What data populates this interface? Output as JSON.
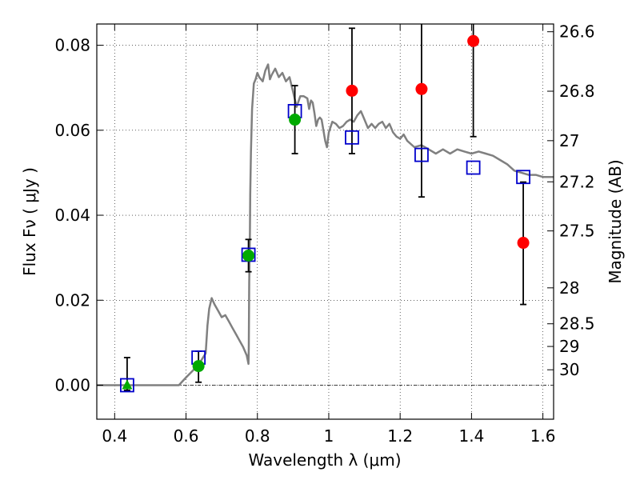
{
  "chart_data": {
    "type": "scatter",
    "xlabel": "Wavelength  λ (μm)",
    "ylabel_left": "Flux  Fν  ( μJy )",
    "ylabel_right": "Magnitude (AB)",
    "xlim": [
      0.35,
      1.63
    ],
    "ylim": [
      -0.008,
      0.085
    ],
    "grid": true,
    "x_ticks": [
      0.4,
      0.6,
      0.8,
      1.0,
      1.2,
      1.4,
      1.6
    ],
    "x_tick_labels": [
      "0.4",
      "0.6",
      "0.8",
      "1",
      "1.2",
      "1.4",
      "1.6"
    ],
    "y_ticks": [
      0.0,
      0.02,
      0.04,
      0.06,
      0.08
    ],
    "y_tick_labels": [
      "0.00",
      "0.02",
      "0.04",
      "0.06",
      "0.08"
    ],
    "mag_ticks": [
      "26.6",
      "26.8",
      "27",
      "27.2",
      "27.5",
      "28",
      "28.5",
      "29",
      "30"
    ],
    "colors": {
      "observed": "#ff0000",
      "model_photometry": "#0000cc",
      "upper_detection": "#00aa00",
      "sed_curve": "#808080",
      "error_bar": "#000000"
    },
    "sed_curve": [
      [
        0.35,
        0.0
      ],
      [
        0.58,
        0.0
      ],
      [
        0.6,
        0.0018
      ],
      [
        0.62,
        0.0035
      ],
      [
        0.64,
        0.0055
      ],
      [
        0.655,
        0.0075
      ],
      [
        0.66,
        0.014
      ],
      [
        0.665,
        0.018
      ],
      [
        0.672,
        0.0205
      ],
      [
        0.68,
        0.019
      ],
      [
        0.69,
        0.0175
      ],
      [
        0.7,
        0.016
      ],
      [
        0.71,
        0.0165
      ],
      [
        0.72,
        0.015
      ],
      [
        0.73,
        0.0135
      ],
      [
        0.74,
        0.012
      ],
      [
        0.75,
        0.0105
      ],
      [
        0.76,
        0.009
      ],
      [
        0.77,
        0.007
      ],
      [
        0.775,
        0.005
      ],
      [
        0.776,
        0.009
      ],
      [
        0.777,
        0.024
      ],
      [
        0.779,
        0.036
      ],
      [
        0.78,
        0.045
      ],
      [
        0.782,
        0.055
      ],
      [
        0.785,
        0.065
      ],
      [
        0.79,
        0.071
      ],
      [
        0.795,
        0.072
      ],
      [
        0.8,
        0.0735
      ],
      [
        0.805,
        0.0725
      ],
      [
        0.815,
        0.0715
      ],
      [
        0.822,
        0.074
      ],
      [
        0.83,
        0.0755
      ],
      [
        0.835,
        0.072
      ],
      [
        0.84,
        0.073
      ],
      [
        0.85,
        0.0745
      ],
      [
        0.86,
        0.0725
      ],
      [
        0.87,
        0.0735
      ],
      [
        0.88,
        0.0715
      ],
      [
        0.89,
        0.0725
      ],
      [
        0.9,
        0.069
      ],
      [
        0.91,
        0.0655
      ],
      [
        0.92,
        0.068
      ],
      [
        0.93,
        0.068
      ],
      [
        0.94,
        0.0675
      ],
      [
        0.945,
        0.065
      ],
      [
        0.95,
        0.067
      ],
      [
        0.955,
        0.0665
      ],
      [
        0.96,
        0.064
      ],
      [
        0.965,
        0.061
      ],
      [
        0.97,
        0.0625
      ],
      [
        0.975,
        0.063
      ],
      [
        0.98,
        0.0625
      ],
      [
        0.99,
        0.0575
      ],
      [
        0.995,
        0.056
      ],
      [
        1.0,
        0.0595
      ],
      [
        1.01,
        0.062
      ],
      [
        1.02,
        0.0615
      ],
      [
        1.03,
        0.0605
      ],
      [
        1.04,
        0.061
      ],
      [
        1.05,
        0.062
      ],
      [
        1.06,
        0.0625
      ],
      [
        1.07,
        0.062
      ],
      [
        1.08,
        0.0635
      ],
      [
        1.09,
        0.0645
      ],
      [
        1.1,
        0.0625
      ],
      [
        1.11,
        0.0605
      ],
      [
        1.12,
        0.0615
      ],
      [
        1.13,
        0.0605
      ],
      [
        1.14,
        0.0615
      ],
      [
        1.15,
        0.062
      ],
      [
        1.16,
        0.0605
      ],
      [
        1.17,
        0.0615
      ],
      [
        1.18,
        0.0595
      ],
      [
        1.19,
        0.0585
      ],
      [
        1.2,
        0.058
      ],
      [
        1.21,
        0.059
      ],
      [
        1.22,
        0.0575
      ],
      [
        1.24,
        0.056
      ],
      [
        1.26,
        0.0565
      ],
      [
        1.28,
        0.0555
      ],
      [
        1.3,
        0.0545
      ],
      [
        1.32,
        0.0555
      ],
      [
        1.34,
        0.0545
      ],
      [
        1.36,
        0.0555
      ],
      [
        1.38,
        0.055
      ],
      [
        1.4,
        0.0545
      ],
      [
        1.42,
        0.055
      ],
      [
        1.44,
        0.0545
      ],
      [
        1.46,
        0.054
      ],
      [
        1.48,
        0.053
      ],
      [
        1.5,
        0.052
      ],
      [
        1.52,
        0.0505
      ],
      [
        1.54,
        0.05
      ],
      [
        1.56,
        0.0495
      ],
      [
        1.58,
        0.0495
      ],
      [
        1.6,
        0.049
      ],
      [
        1.63,
        0.049
      ]
    ],
    "observed": [
      {
        "x": 1.065,
        "y": 0.0693,
        "lo": 0.0545,
        "hi": 0.084
      },
      {
        "x": 1.26,
        "y": 0.0697,
        "lo": 0.0443,
        "hi": 0.0855
      },
      {
        "x": 1.405,
        "y": 0.081,
        "lo": 0.0585,
        "hi": 0.0855
      },
      {
        "x": 1.545,
        "y": 0.0335,
        "lo": 0.019,
        "hi": 0.0478
      }
    ],
    "upper_detection": [
      {
        "x": 0.635,
        "y": 0.0045,
        "lo": 0.0007,
        "hi": 0.008,
        "marker": "circle"
      },
      {
        "x": 0.775,
        "y": 0.0305,
        "lo": 0.0267,
        "hi": 0.0343,
        "marker": "circle"
      },
      {
        "x": 0.905,
        "y": 0.0625,
        "lo": 0.0545,
        "hi": 0.0705,
        "marker": "circle"
      },
      {
        "x": 0.435,
        "y": 0.0,
        "lo": -0.0012,
        "hi": 0.0065,
        "marker": "triangle"
      }
    ],
    "model_photometry": [
      {
        "x": 0.435,
        "y": 0.0
      },
      {
        "x": 0.635,
        "y": 0.0065
      },
      {
        "x": 0.775,
        "y": 0.0307
      },
      {
        "x": 0.905,
        "y": 0.0645
      },
      {
        "x": 1.065,
        "y": 0.0583
      },
      {
        "x": 1.26,
        "y": 0.0542
      },
      {
        "x": 1.405,
        "y": 0.0512
      },
      {
        "x": 1.545,
        "y": 0.049
      }
    ]
  }
}
